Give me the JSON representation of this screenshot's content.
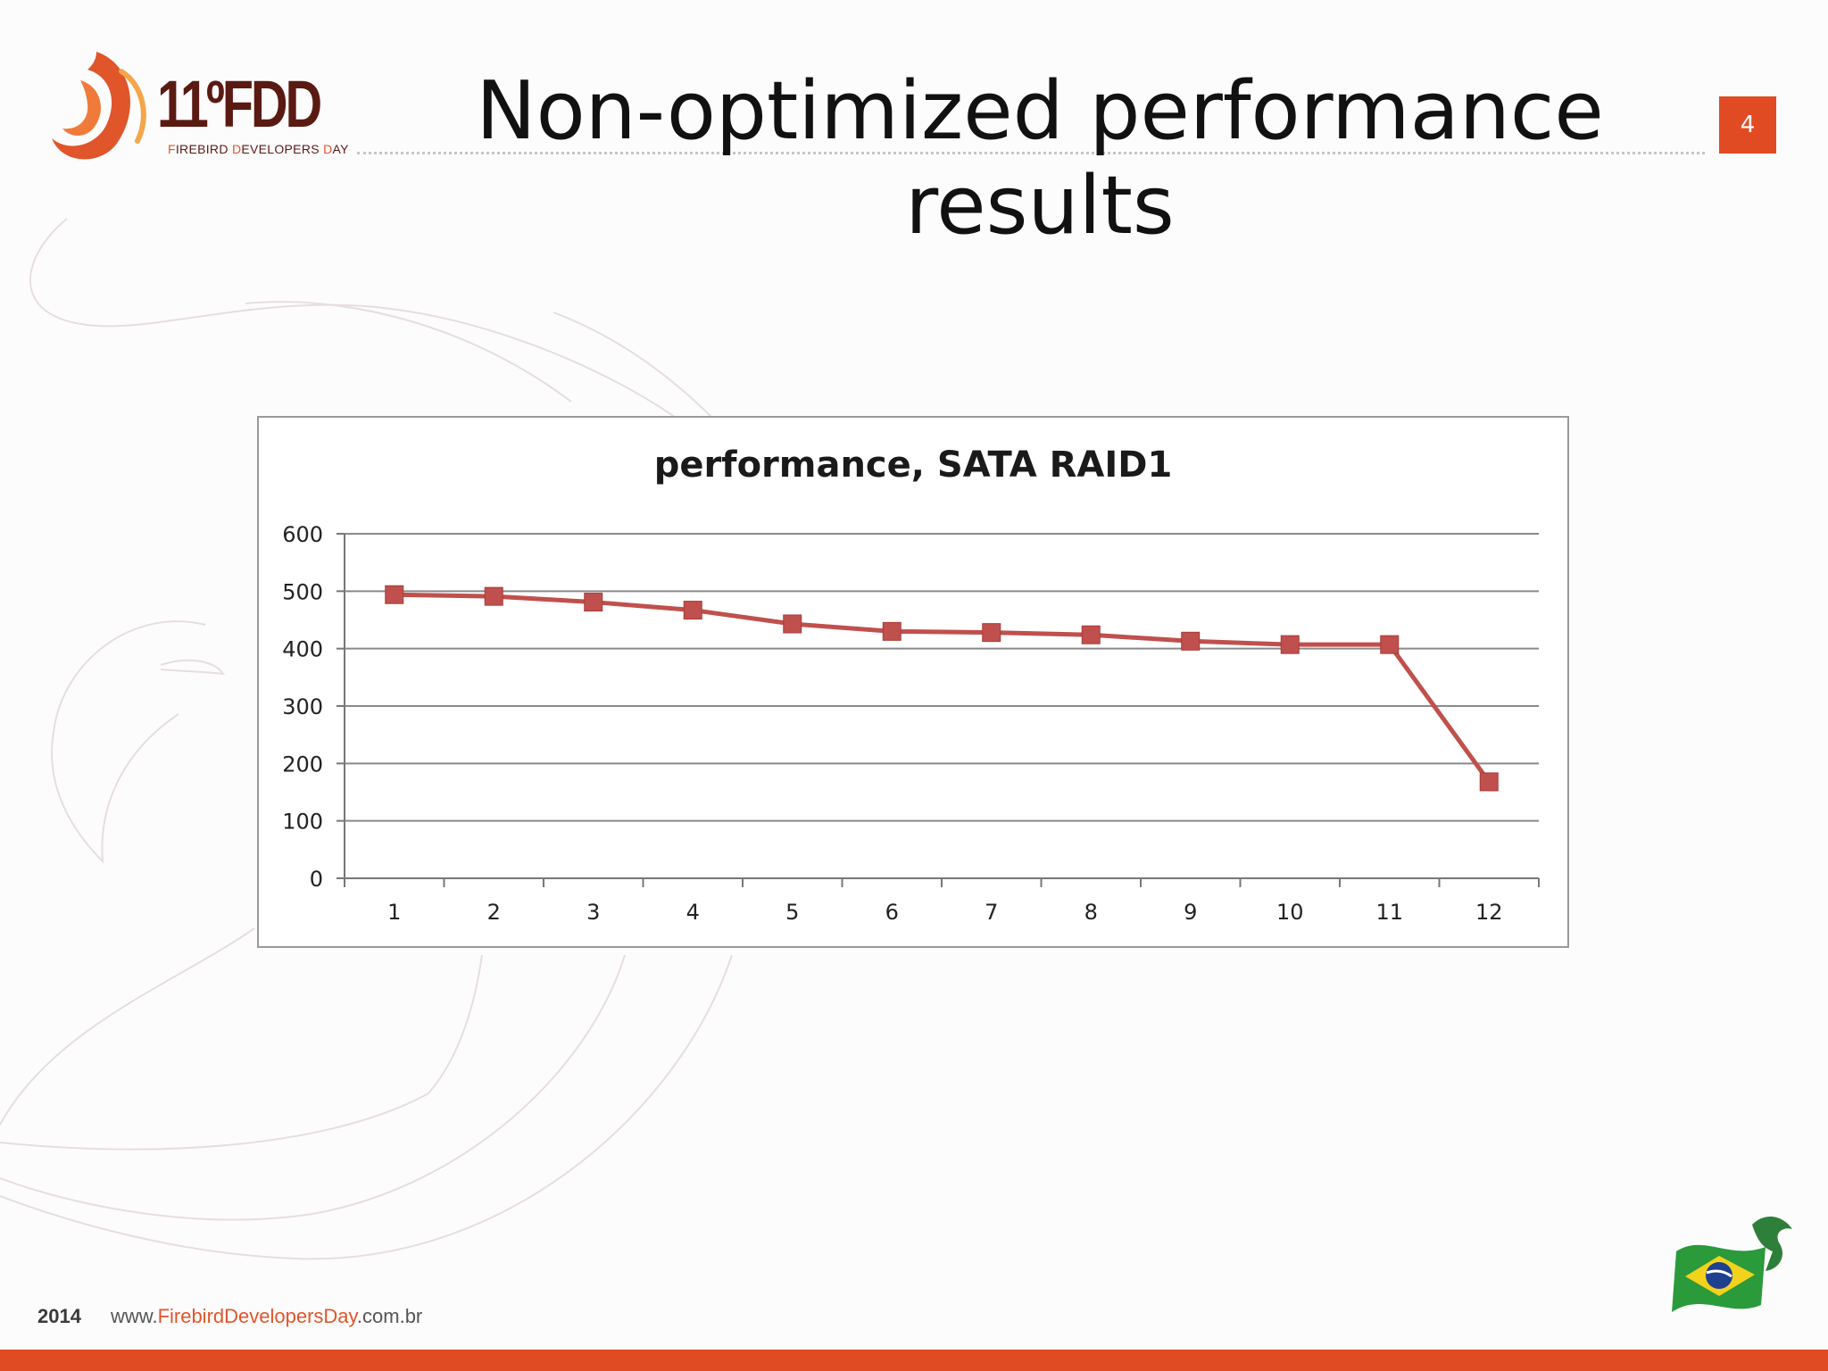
{
  "logo": {
    "number": "11ºFDD",
    "sub_prefix_1": "F",
    "sub_rest_1": "IREBIRD ",
    "sub_prefix_2": "D",
    "sub_rest_2": "EVELOPERS ",
    "sub_prefix_3": "D",
    "sub_rest_3": "AY"
  },
  "slide": {
    "title": "Non-optimized performance results",
    "page_number": "4"
  },
  "footer": {
    "year": "2014",
    "url_prefix": "www.",
    "url_highlight": "FirebirdDevelopersDay",
    "url_suffix": ".com.br"
  },
  "colors": {
    "accent": "#e04b23",
    "series": "#c0504d",
    "logo_dark": "#5a1a12"
  },
  "chart_data": {
    "type": "line",
    "title": "performance, SATA RAID1",
    "categories": [
      "1",
      "2",
      "3",
      "4",
      "5",
      "6",
      "7",
      "8",
      "9",
      "10",
      "11",
      "12"
    ],
    "series": [
      {
        "values": [
          494,
          491,
          481,
          467,
          443,
          430,
          428,
          424,
          413,
          407,
          407,
          168
        ]
      }
    ],
    "ylim": [
      0,
      600
    ],
    "yticks": [
      0,
      100,
      200,
      300,
      400,
      500,
      600
    ],
    "grid": true,
    "legend": "none",
    "marker": "square"
  }
}
